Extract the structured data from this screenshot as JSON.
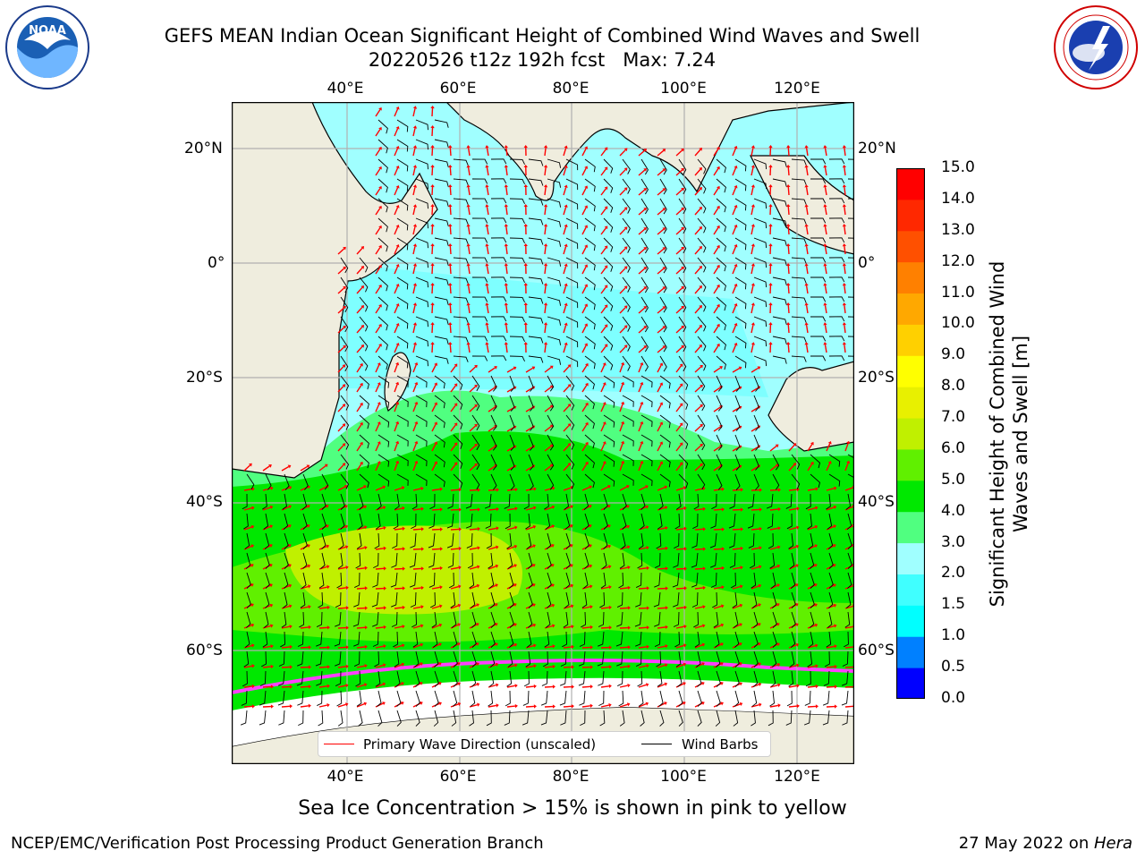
{
  "title": {
    "line1": "GEFS MEAN Indian Ocean Significant Height of Combined Wind Waves and Swell",
    "line2": "20220526 t12z 192h fcst   Max: 7.24"
  },
  "logos": {
    "left": {
      "icon": "noaa-logo-icon",
      "text": "NOAA",
      "ring_text": "NATIONAL OCEANIC AND ATMOSPHERIC ADMINISTRATION · U.S. DEPARTMENT OF COMMERCE"
    },
    "right": {
      "icon": "nws-logo-icon",
      "ring_text": "NATIONAL WEATHER SERVICE"
    }
  },
  "map": {
    "lon_ticks_top": [
      "40°E",
      "60°E",
      "80°E",
      "100°E",
      "120°E"
    ],
    "lon_ticks_bottom": [
      "40°E",
      "60°E",
      "80°E",
      "100°E",
      "120°E"
    ],
    "lat_ticks_left": [
      "20°N",
      "0°",
      "20°S",
      "40°S",
      "60°S"
    ],
    "lat_ticks_right": [
      "20°N",
      "0°",
      "20°S",
      "40°S",
      "60°S"
    ],
    "colors": {
      "land": "#efedde",
      "ice": "#ffffff",
      "grid": "#b0b0b0",
      "arrow": "#ff0000",
      "barb": "#000000"
    }
  },
  "legend": {
    "wave_label": "Primary Wave Direction (unscaled)",
    "wind_label": "Wind Barbs",
    "wave_color": "#ff0000",
    "wind_color": "#000000"
  },
  "colorbar": {
    "label": "Significant Height of Combined Wind Waves and Swell [m]",
    "tick_labels": [
      "0.0",
      "0.5",
      "1.0",
      "1.5",
      "2.0",
      "3.0",
      "4.0",
      "5.0",
      "6.0",
      "7.0",
      "8.0",
      "9.0",
      "10.0",
      "11.0",
      "12.0",
      "13.0",
      "14.0",
      "15.0"
    ],
    "colors": [
      "#0000ff",
      "#0080ff",
      "#00ffff",
      "#40ffff",
      "#a0ffff",
      "#50ff80",
      "#00e800",
      "#60f000",
      "#c0f000",
      "#e8f000",
      "#ffff00",
      "#ffd000",
      "#ffa800",
      "#ff8000",
      "#ff5000",
      "#ff2800",
      "#ff0000"
    ]
  },
  "caption": "Sea Ice Concentration > 15% is shown in pink to yellow",
  "footer": {
    "left": "NCEP/EMC/Verification Post Processing Product Generation Branch",
    "right_date": "27 May 2022 on ",
    "right_host": "Hera"
  }
}
